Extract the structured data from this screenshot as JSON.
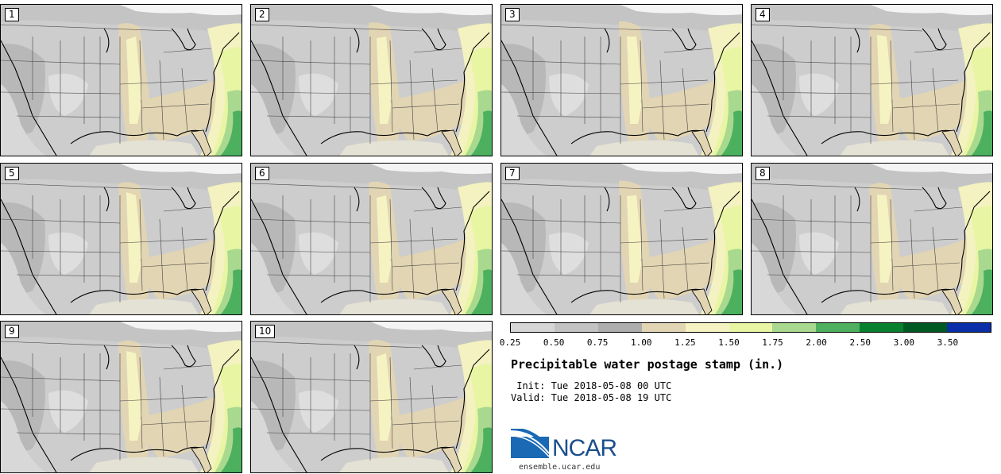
{
  "panels": [
    {
      "label": "1"
    },
    {
      "label": "2"
    },
    {
      "label": "3"
    },
    {
      "label": "4"
    },
    {
      "label": "5"
    },
    {
      "label": "6"
    },
    {
      "label": "7"
    },
    {
      "label": "8"
    },
    {
      "label": "9"
    },
    {
      "label": "10"
    }
  ],
  "colorbar": {
    "colors": [
      "#d6d6d6",
      "#c2c2c2",
      "#adadad",
      "#e2d5b3",
      "#f6f3c2",
      "#e8f5a3",
      "#a8d98f",
      "#4cb05f",
      "#08812f",
      "#005a24",
      "#0a2fa8"
    ],
    "labels": [
      "0.25",
      "0.50",
      "0.75",
      "1.00",
      "1.25",
      "1.50",
      "1.75",
      "2.00",
      "2.50",
      "3.00",
      "3.50"
    ]
  },
  "title": "Precipitable water postage stamp (in.)",
  "init": " Init: Tue 2018-05-08 00 UTC",
  "valid": "Valid: Tue 2018-05-08 19 UTC",
  "logo": {
    "text": "NCAR",
    "site": "ensemble.ucar.edu"
  }
}
